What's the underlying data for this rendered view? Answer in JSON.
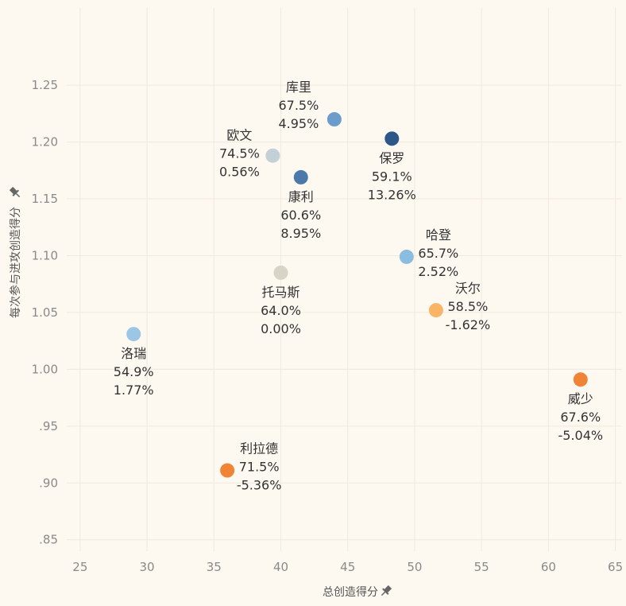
{
  "chart_data": {
    "type": "scatter",
    "xlabel": "总创造得分",
    "ylabel": "每次参与进攻创造得分",
    "xlim": [
      24,
      65.5
    ],
    "ylim": [
      0.84,
      1.29
    ],
    "xticks": [
      "25",
      "30",
      "35",
      "40",
      "45",
      "50",
      "55",
      "60",
      "65"
    ],
    "yticks": [
      ".85",
      ".90",
      ".95",
      "1.00",
      "1.05",
      "1.10",
      "1.15",
      "1.20",
      "1.25"
    ],
    "grid": true,
    "points": [
      {
        "name": "库里",
        "pct": "67.5%",
        "delta": "4.95%",
        "x": 44.0,
        "y": 1.22,
        "color": "#6c9ccb",
        "label_pos": "above-left"
      },
      {
        "name": "欧文",
        "pct": "74.5%",
        "delta": "0.56%",
        "x": 39.4,
        "y": 1.188,
        "color": "#c3d0d5",
        "label_pos": "left"
      },
      {
        "name": "保罗",
        "pct": "59.1%",
        "delta": "13.26%",
        "x": 48.3,
        "y": 1.203,
        "color": "#2c5788",
        "label_pos": "below"
      },
      {
        "name": "康利",
        "pct": "60.6%",
        "delta": "8.95%",
        "x": 41.5,
        "y": 1.169,
        "color": "#4a79aa",
        "label_pos": "below"
      },
      {
        "name": "哈登",
        "pct": "65.7%",
        "delta": "2.52%",
        "x": 49.4,
        "y": 1.099,
        "color": "#8bbde0",
        "label_pos": "right"
      },
      {
        "name": "托马斯",
        "pct": "64.0%",
        "delta": "0.00%",
        "x": 40.0,
        "y": 1.085,
        "color": "#d8d4c6",
        "label_pos": "below"
      },
      {
        "name": "沃尔",
        "pct": "58.5%",
        "delta": "-1.62%",
        "x": 51.6,
        "y": 1.052,
        "color": "#f9b465",
        "label_pos": "right"
      },
      {
        "name": "洛瑞",
        "pct": "54.9%",
        "delta": "1.77%",
        "x": 29.0,
        "y": 1.031,
        "color": "#9cc6e6",
        "label_pos": "below"
      },
      {
        "name": "威少",
        "pct": "67.6%",
        "delta": "-5.04%",
        "x": 62.4,
        "y": 0.991,
        "color": "#ef8436",
        "label_pos": "below"
      },
      {
        "name": "利拉德",
        "pct": "71.5%",
        "delta": "-5.36%",
        "x": 36.0,
        "y": 0.911,
        "color": "#ef8436",
        "label_pos": "right"
      }
    ]
  }
}
